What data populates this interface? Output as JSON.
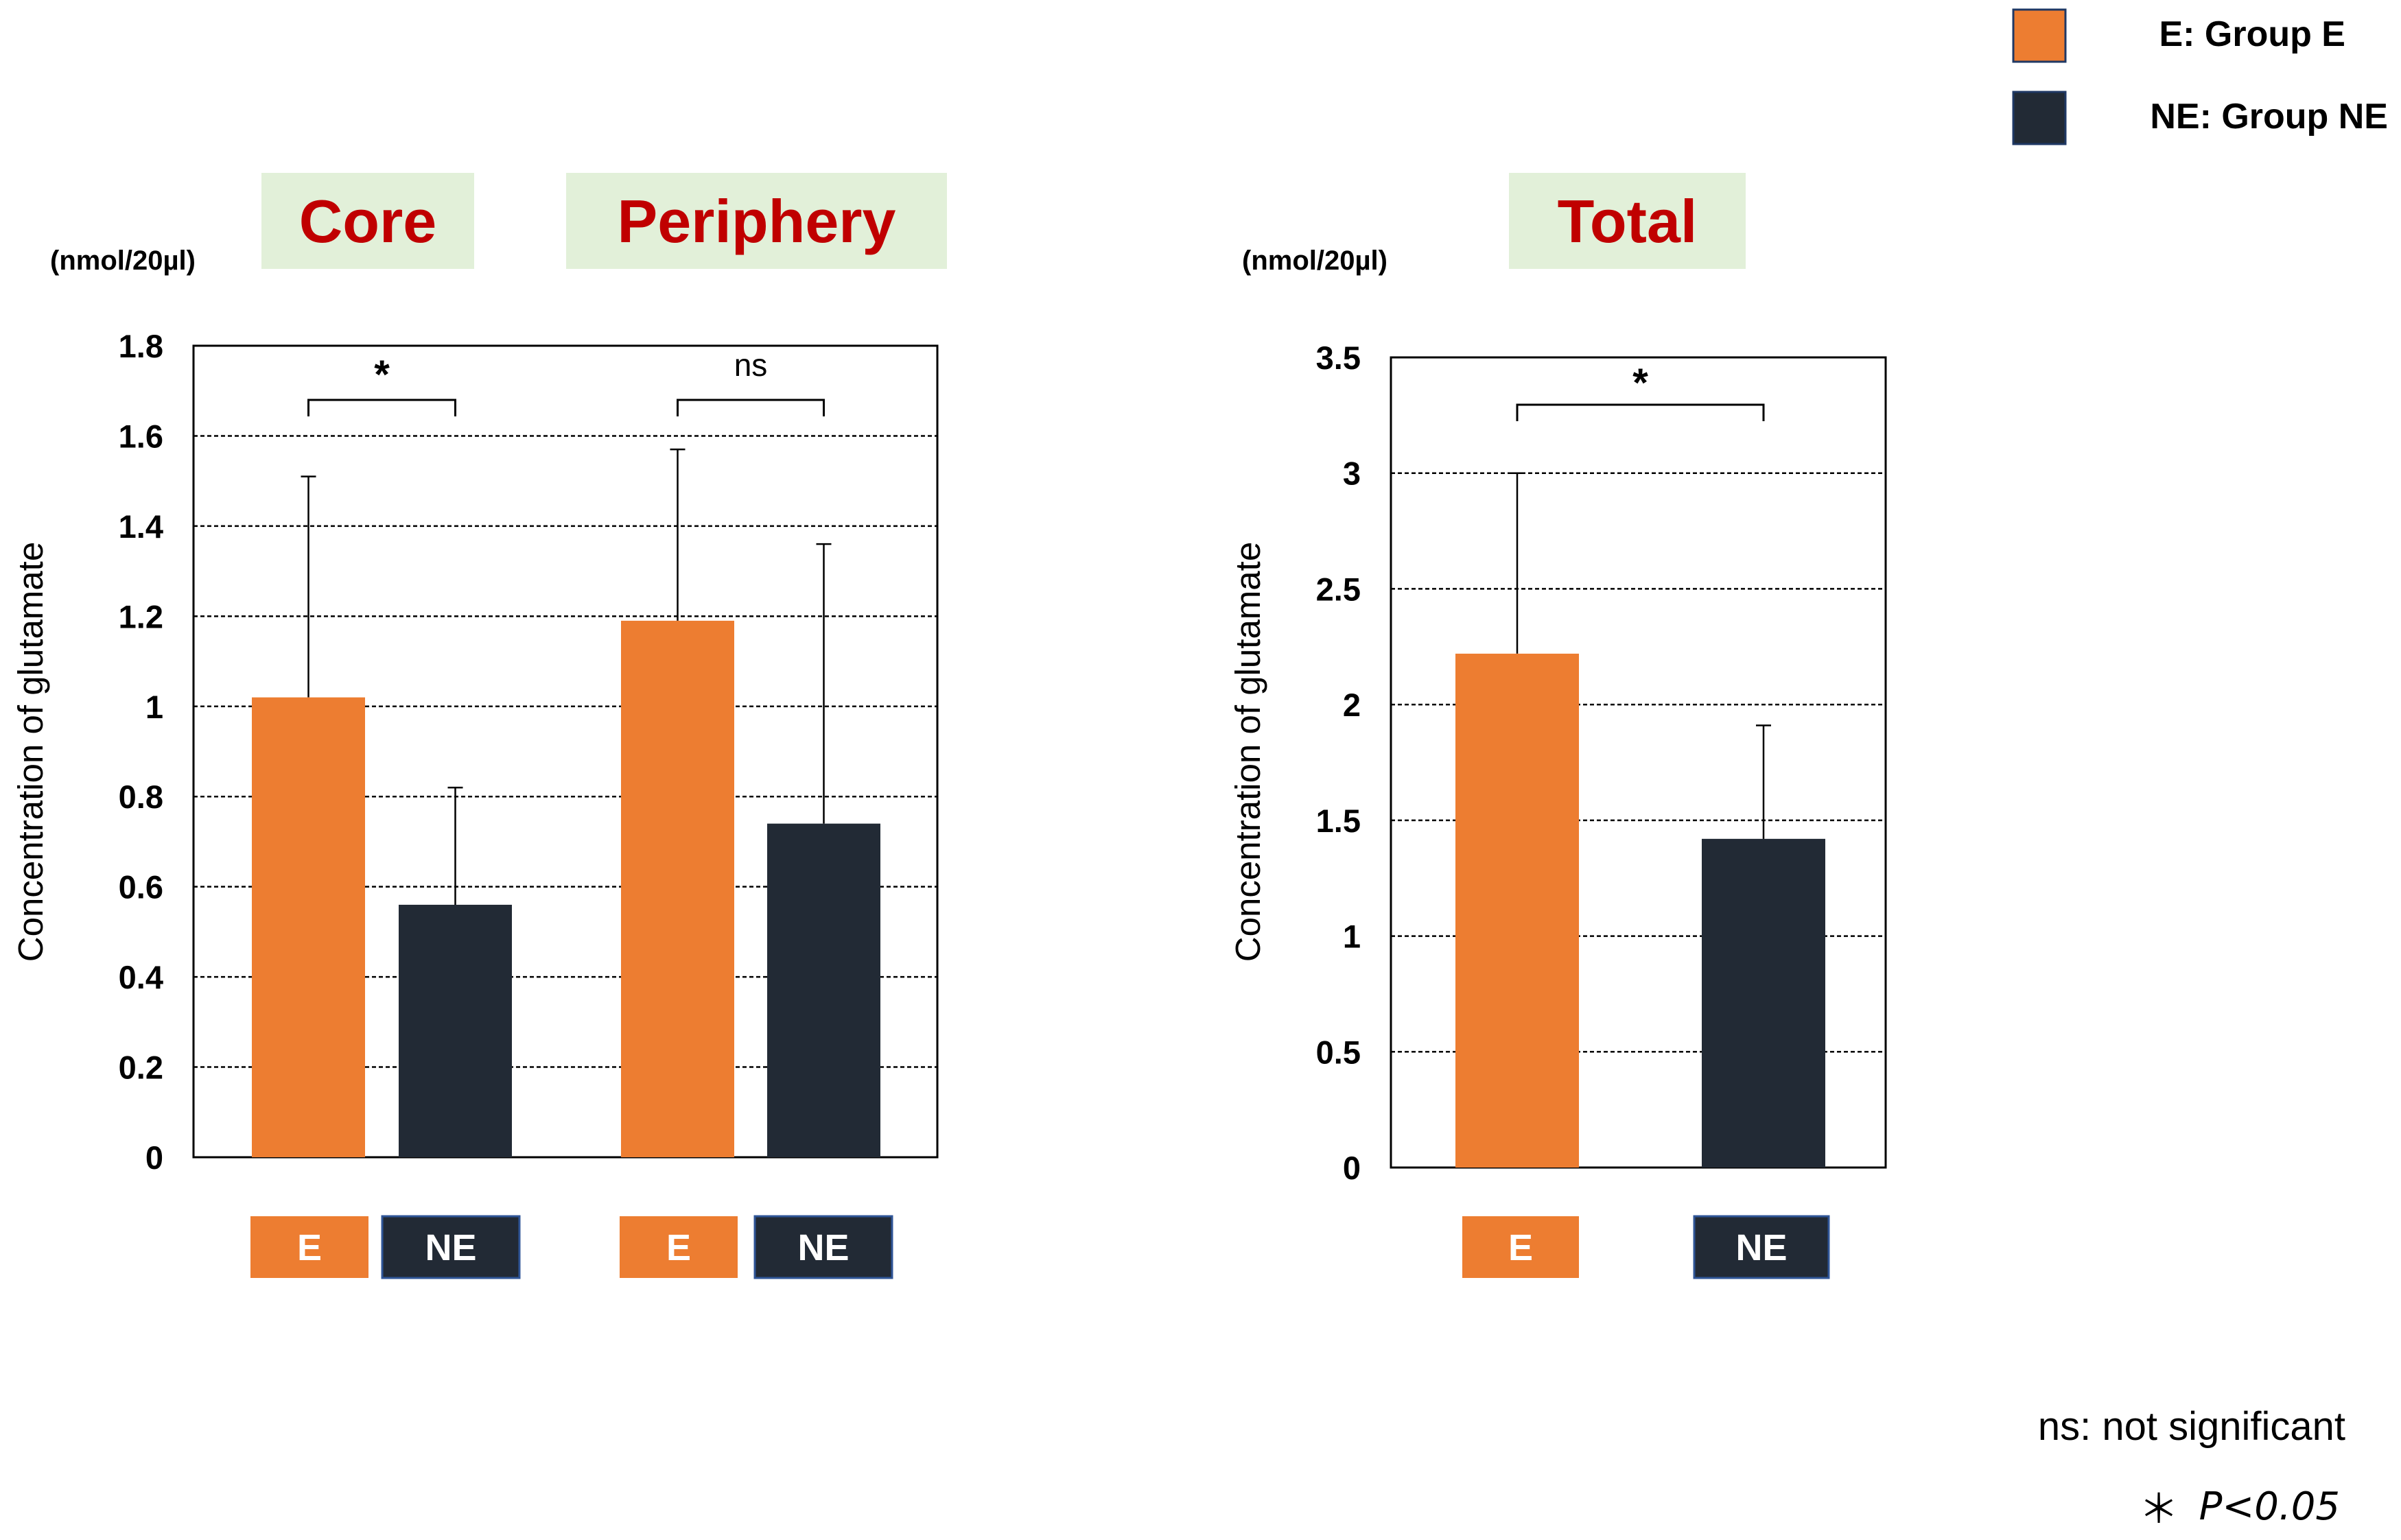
{
  "colors": {
    "group_e": "#ED7D31",
    "group_ne": "#222A35",
    "title_text": "#C00000",
    "title_bg": "#E2F0D9",
    "axis": "#000000"
  },
  "legend": [
    {
      "label": "E: Group E",
      "color": "#ED7D31"
    },
    {
      "label": "NE: Group NE",
      "color": "#222A35"
    }
  ],
  "footnotes": {
    "ns": "ns: not significant",
    "star": "＊",
    "p": "P<0.05"
  },
  "chart_data": [
    {
      "type": "bar",
      "unit_label": "(nmol/20µl)",
      "ylabel": "Concentration of glutamate",
      "ylim": [
        0,
        1.8
      ],
      "yticks": [
        0,
        0.2,
        0.4,
        0.6,
        0.8,
        1,
        1.2,
        1.4,
        1.6,
        1.8
      ],
      "ytick_labels": [
        "0",
        "0.2",
        "0.4",
        "0.6",
        "0.8",
        "1",
        "1.2",
        "1.4",
        "1.6",
        "1.8"
      ],
      "grid": "horizontal dashed",
      "panels": [
        {
          "title": "Core",
          "significance": "*",
          "bars": [
            {
              "group": "E",
              "value": 1.02,
              "error": 0.49
            },
            {
              "group": "NE",
              "value": 0.56,
              "error": 0.26
            }
          ]
        },
        {
          "title": "Periphery",
          "significance": "ns",
          "bars": [
            {
              "group": "E",
              "value": 1.19,
              "error": 0.38
            },
            {
              "group": "NE",
              "value": 0.74,
              "error": 0.62
            }
          ]
        }
      ]
    },
    {
      "type": "bar",
      "unit_label": "(nmol/20µl)",
      "ylabel": "Concentration of glutamate",
      "ylim": [
        0,
        3.5
      ],
      "yticks": [
        0,
        0.5,
        1,
        1.5,
        2,
        2.5,
        3,
        3.5
      ],
      "ytick_labels": [
        "0",
        "0.5",
        "1",
        "1.5",
        "2",
        "2.5",
        "3",
        "3.5"
      ],
      "grid": "horizontal dashed",
      "panels": [
        {
          "title": "Total",
          "significance": "*",
          "bars": [
            {
              "group": "E",
              "value": 2.22,
              "error": 0.78
            },
            {
              "group": "NE",
              "value": 1.42,
              "error": 0.49
            }
          ]
        }
      ]
    }
  ]
}
